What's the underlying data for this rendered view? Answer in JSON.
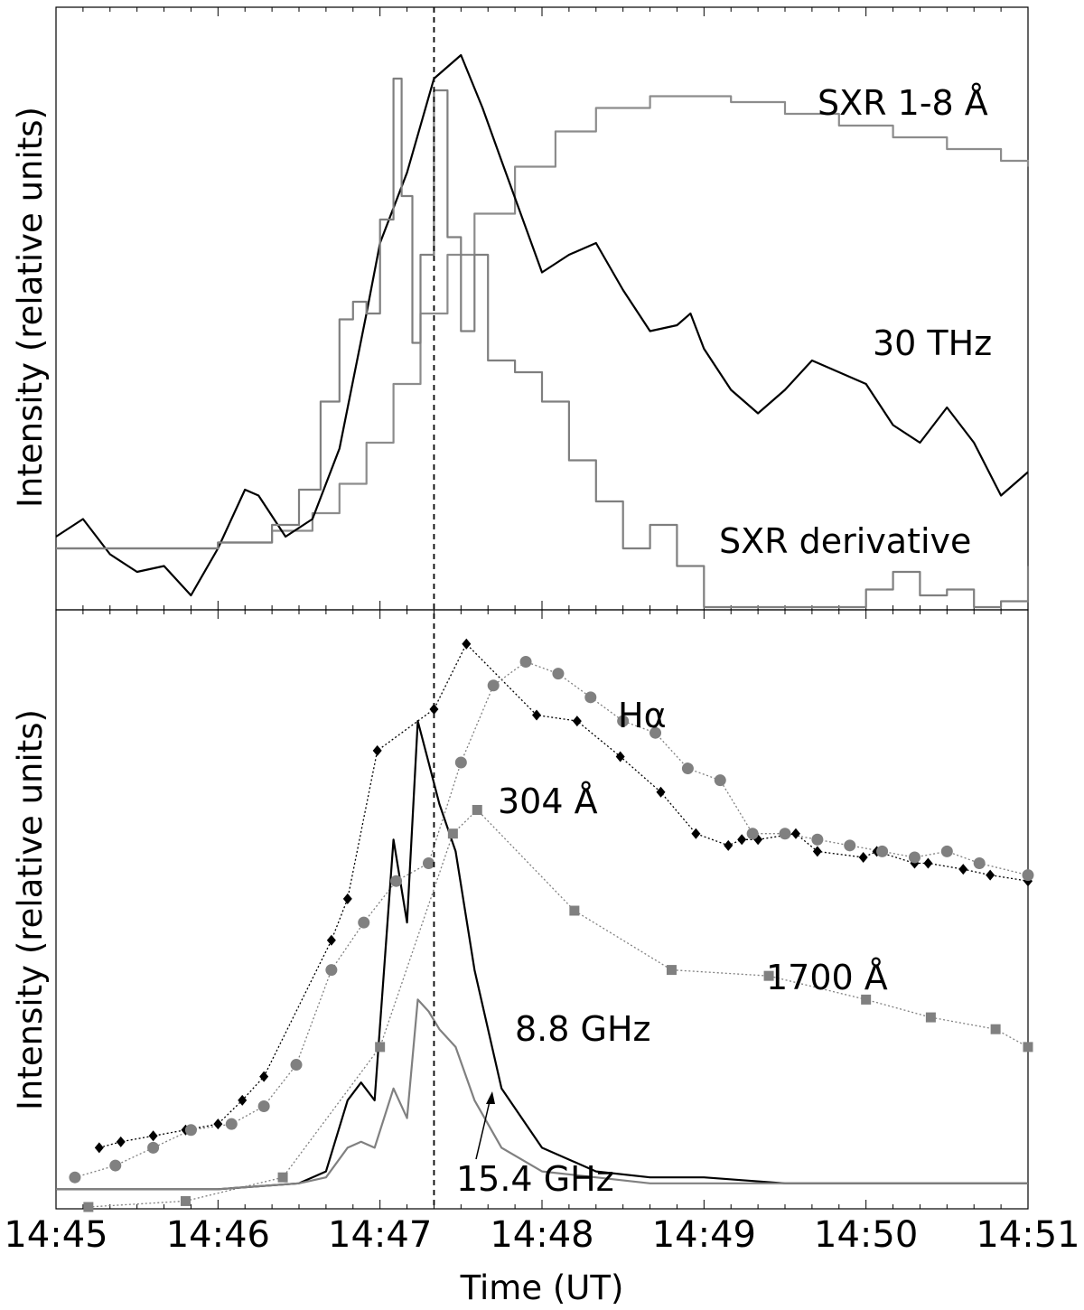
{
  "chart_data": [
    {
      "type": "line",
      "ylabel": "Intensity  (relative units)",
      "xlim": [
        "14:45",
        "14:51"
      ],
      "ylim": [
        0,
        1
      ],
      "grid": false,
      "series": [
        {
          "name": "SXR 1-8 Å",
          "color": "#8c8c8c",
          "step": true,
          "x": [
            "14:45:00",
            "14:45:30",
            "14:46:00",
            "14:46:20",
            "14:46:35",
            "14:46:45",
            "14:46:55",
            "14:47:05",
            "14:47:15",
            "14:47:25",
            "14:47:35",
            "14:47:50",
            "14:48:05",
            "14:48:20",
            "14:48:40",
            "14:48:55",
            "14:49:10",
            "14:49:30",
            "14:49:50",
            "14:50:10",
            "14:50:30",
            "14:50:50",
            "14:51:00"
          ],
          "y": [
            0.1,
            0.1,
            0.11,
            0.13,
            0.16,
            0.21,
            0.28,
            0.38,
            0.5,
            0.6,
            0.67,
            0.75,
            0.81,
            0.85,
            0.87,
            0.87,
            0.86,
            0.84,
            0.82,
            0.8,
            0.78,
            0.76,
            0.75
          ]
        },
        {
          "name": "30 THz",
          "color": "#000000",
          "step": false,
          "x": [
            "14:45:00",
            "14:45:10",
            "14:45:20",
            "14:45:30",
            "14:45:40",
            "14:45:50",
            "14:46:00",
            "14:46:10",
            "14:46:15",
            "14:46:25",
            "14:46:35",
            "14:46:45",
            "14:46:55",
            "14:47:00",
            "14:47:10",
            "14:47:15",
            "14:47:20",
            "14:47:30",
            "14:47:38",
            "14:47:45",
            "14:48:00",
            "14:48:10",
            "14:48:20",
            "14:48:30",
            "14:48:40",
            "14:48:50",
            "14:48:55",
            "14:49:00",
            "14:49:10",
            "14:49:20",
            "14:49:30",
            "14:49:40",
            "14:49:50",
            "14:50:00",
            "14:50:10",
            "14:50:20",
            "14:50:30",
            "14:50:40",
            "14:50:50",
            "14:51:00"
          ],
          "y": [
            0.12,
            0.15,
            0.09,
            0.06,
            0.07,
            0.02,
            0.1,
            0.2,
            0.19,
            0.12,
            0.15,
            0.27,
            0.5,
            0.62,
            0.74,
            0.82,
            0.9,
            0.94,
            0.85,
            0.76,
            0.57,
            0.6,
            0.62,
            0.54,
            0.47,
            0.48,
            0.5,
            0.44,
            0.37,
            0.33,
            0.37,
            0.42,
            0.4,
            0.38,
            0.31,
            0.28,
            0.34,
            0.28,
            0.19,
            0.23
          ]
        },
        {
          "name": "SXR derivative",
          "color": "#7f7f7f",
          "step": true,
          "x": [
            "14:45:00",
            "14:45:30",
            "14:46:00",
            "14:46:20",
            "14:46:30",
            "14:46:38",
            "14:46:45",
            "14:46:50",
            "14:46:55",
            "14:47:00",
            "14:47:05",
            "14:47:08",
            "14:47:12",
            "14:47:15",
            "14:47:20",
            "14:47:25",
            "14:47:30",
            "14:47:35",
            "14:47:40",
            "14:47:50",
            "14:48:00",
            "14:48:10",
            "14:48:20",
            "14:48:30",
            "14:48:40",
            "14:48:50",
            "14:49:00",
            "14:49:10",
            "14:49:20",
            "14:49:30",
            "14:49:40",
            "14:49:50",
            "14:50:00",
            "14:50:10",
            "14:50:20",
            "14:50:30",
            "14:50:40",
            "14:50:50",
            "14:51:00"
          ],
          "y": [
            0.1,
            0.1,
            0.11,
            0.14,
            0.2,
            0.35,
            0.49,
            0.52,
            0.5,
            0.66,
            0.9,
            0.7,
            0.45,
            0.6,
            0.88,
            0.63,
            0.47,
            0.6,
            0.42,
            0.4,
            0.35,
            0.25,
            0.18,
            0.1,
            0.14,
            0.07,
            0.0,
            0.0,
            0.0,
            0.0,
            0.0,
            0.0,
            0.03,
            0.06,
            0.02,
            0.03,
            0.0,
            0.01,
            0.07
          ]
        }
      ],
      "annotations": [
        {
          "text": "SXR 1-8 Å",
          "near": "SXR 1-8 Å"
        },
        {
          "text": "30 THz",
          "near": "30 THz"
        },
        {
          "text": "SXR derivative",
          "near": "SXR derivative"
        }
      ],
      "vline": "14:47:20"
    },
    {
      "type": "line",
      "xlabel": "Time  (UT)",
      "ylabel": "Intensity  (relative units)",
      "xticks": [
        "14:45",
        "14:46",
        "14:47",
        "14:48",
        "14:49",
        "14:50",
        "14:51"
      ],
      "xlim": [
        "14:45",
        "14:51"
      ],
      "ylim": [
        0,
        1
      ],
      "grid": false,
      "series": [
        {
          "name": "Hα",
          "color": "#000000",
          "marker": "diamond",
          "x": [
            "14:45:16",
            "14:45:24",
            "14:45:36",
            "14:45:48",
            "14:46:00",
            "14:46:09",
            "14:46:17",
            "14:46:42",
            "14:46:48",
            "14:46:59",
            "14:47:20",
            "14:47:32",
            "14:47:58",
            "14:48:13",
            "14:48:29",
            "14:48:44",
            "14:48:57",
            "14:49:09",
            "14:49:14",
            "14:49:20",
            "14:49:34",
            "14:49:42",
            "14:49:59",
            "14:50:04",
            "14:50:18",
            "14:50:23",
            "14:50:36",
            "14:50:46",
            "14:51:00"
          ],
          "y": [
            0.1,
            0.11,
            0.12,
            0.13,
            0.14,
            0.18,
            0.22,
            0.45,
            0.52,
            0.77,
            0.84,
            0.95,
            0.83,
            0.82,
            0.76,
            0.7,
            0.63,
            0.61,
            0.62,
            0.62,
            0.63,
            0.6,
            0.59,
            0.6,
            0.58,
            0.58,
            0.57,
            0.56,
            0.55
          ]
        },
        {
          "name": "304 Å",
          "color": "#808080",
          "marker": "circle",
          "x": [
            "14:45:07",
            "14:45:22",
            "14:45:36",
            "14:45:50",
            "14:46:05",
            "14:46:17",
            "14:46:29",
            "14:46:42",
            "14:46:54",
            "14:47:06",
            "14:47:18",
            "14:47:30",
            "14:47:42",
            "14:47:54",
            "14:48:06",
            "14:48:18",
            "14:48:30",
            "14:48:42",
            "14:48:54",
            "14:49:06",
            "14:49:18",
            "14:49:30",
            "14:49:42",
            "14:49:54",
            "14:50:06",
            "14:50:18",
            "14:50:30",
            "14:50:42",
            "14:51:00"
          ],
          "y": [
            0.05,
            0.07,
            0.1,
            0.13,
            0.14,
            0.17,
            0.24,
            0.4,
            0.48,
            0.55,
            0.58,
            0.75,
            0.88,
            0.92,
            0.9,
            0.86,
            0.82,
            0.8,
            0.74,
            0.72,
            0.63,
            0.63,
            0.62,
            0.61,
            0.6,
            0.59,
            0.6,
            0.58,
            0.56
          ]
        },
        {
          "name": "1700 Å",
          "color": "#808080",
          "marker": "square",
          "x": [
            "14:45:12",
            "14:45:48",
            "14:46:24",
            "14:47:00",
            "14:47:27",
            "14:47:36",
            "14:48:12",
            "14:48:48",
            "14:49:24",
            "14:50:00",
            "14:50:24",
            "14:50:48",
            "14:51:00"
          ],
          "y": [
            0.0,
            0.01,
            0.05,
            0.27,
            0.63,
            0.67,
            0.5,
            0.4,
            0.39,
            0.35,
            0.32,
            0.3,
            0.27
          ]
        },
        {
          "name": "8.8 GHz",
          "color": "#000000",
          "step": false,
          "x": [
            "14:45:00",
            "14:45:30",
            "14:46:00",
            "14:46:30",
            "14:46:40",
            "14:46:48",
            "14:46:53",
            "14:46:58",
            "14:47:05",
            "14:47:10",
            "14:47:14",
            "14:47:18",
            "14:47:22",
            "14:47:28",
            "14:47:35",
            "14:47:45",
            "14:48:00",
            "14:48:20",
            "14:48:40",
            "14:49:00",
            "14:49:30",
            "14:50:00",
            "14:50:30",
            "14:51:00"
          ],
          "y": [
            0.03,
            0.03,
            0.03,
            0.04,
            0.06,
            0.18,
            0.21,
            0.18,
            0.62,
            0.48,
            0.82,
            0.75,
            0.68,
            0.6,
            0.4,
            0.2,
            0.1,
            0.06,
            0.05,
            0.05,
            0.04,
            0.04,
            0.04,
            0.04
          ]
        },
        {
          "name": "15.4 GHz",
          "color": "#808080",
          "step": false,
          "x": [
            "14:45:00",
            "14:45:30",
            "14:46:00",
            "14:46:30",
            "14:46:40",
            "14:46:48",
            "14:46:53",
            "14:46:58",
            "14:47:05",
            "14:47:10",
            "14:47:14",
            "14:47:18",
            "14:47:22",
            "14:47:28",
            "14:47:35",
            "14:47:45",
            "14:48:00",
            "14:48:20",
            "14:48:40",
            "14:49:00",
            "14:49:30",
            "14:50:00",
            "14:50:30",
            "14:51:00"
          ],
          "y": [
            0.03,
            0.03,
            0.03,
            0.04,
            0.05,
            0.1,
            0.11,
            0.1,
            0.2,
            0.15,
            0.35,
            0.33,
            0.3,
            0.27,
            0.18,
            0.1,
            0.06,
            0.05,
            0.04,
            0.04,
            0.04,
            0.04,
            0.04,
            0.04
          ]
        }
      ],
      "annotations": [
        {
          "text": "Hα",
          "near": "Hα"
        },
        {
          "text": "304 Å",
          "near": "304 Å"
        },
        {
          "text": "1700 Å",
          "near": "1700 Å"
        },
        {
          "text": "8.8 GHz",
          "near": "8.8 GHz"
        },
        {
          "text": "15.4 GHz",
          "near": "15.4 GHz",
          "arrow": true
        }
      ],
      "vline": "14:47:20"
    }
  ]
}
